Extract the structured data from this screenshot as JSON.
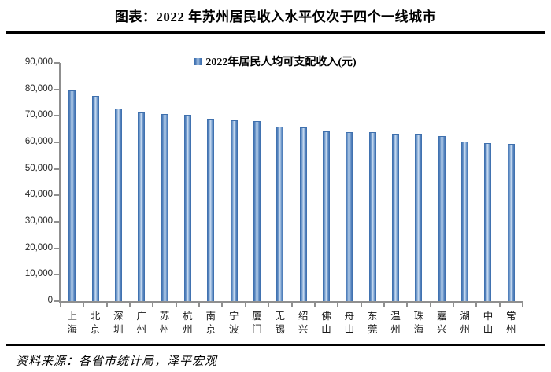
{
  "title": "图表：2022 年苏州居民收入水平仅次于四个一线城市",
  "source": "资料来源：各省市统计局，泽平宏观",
  "chart_data": {
    "type": "bar",
    "title": "图表：2022 年苏州居民收入水平仅次于四个一线城市",
    "legend_label": "2022年居民人均可支配收入(元)",
    "legend_position": "top-center",
    "legend_marker": "blue-square-icon",
    "categories": [
      "上海",
      "北京",
      "深圳",
      "广州",
      "苏州",
      "杭州",
      "南京",
      "宁波",
      "厦门",
      "无锡",
      "绍兴",
      "佛山",
      "舟山",
      "东莞",
      "温州",
      "珠海",
      "嘉兴",
      "湖州",
      "中山",
      "常州"
    ],
    "values": [
      79610,
      77415,
      72718,
      71400,
      70819,
      70281,
      69039,
      68348,
      67999,
      65826,
      65760,
      64300,
      63900,
      63800,
      63000,
      62900,
      62500,
      60400,
      59700,
      59400
    ],
    "xlabel": "",
    "ylabel": "",
    "ylim": [
      0,
      90000
    ],
    "ytick_step": 10000,
    "ytick_format": "thousands-comma",
    "grid": false,
    "bar_color_edge": "#3a6cab",
    "bar_color_center": "#cadcf2",
    "axis_color": "#8f8f8f"
  }
}
